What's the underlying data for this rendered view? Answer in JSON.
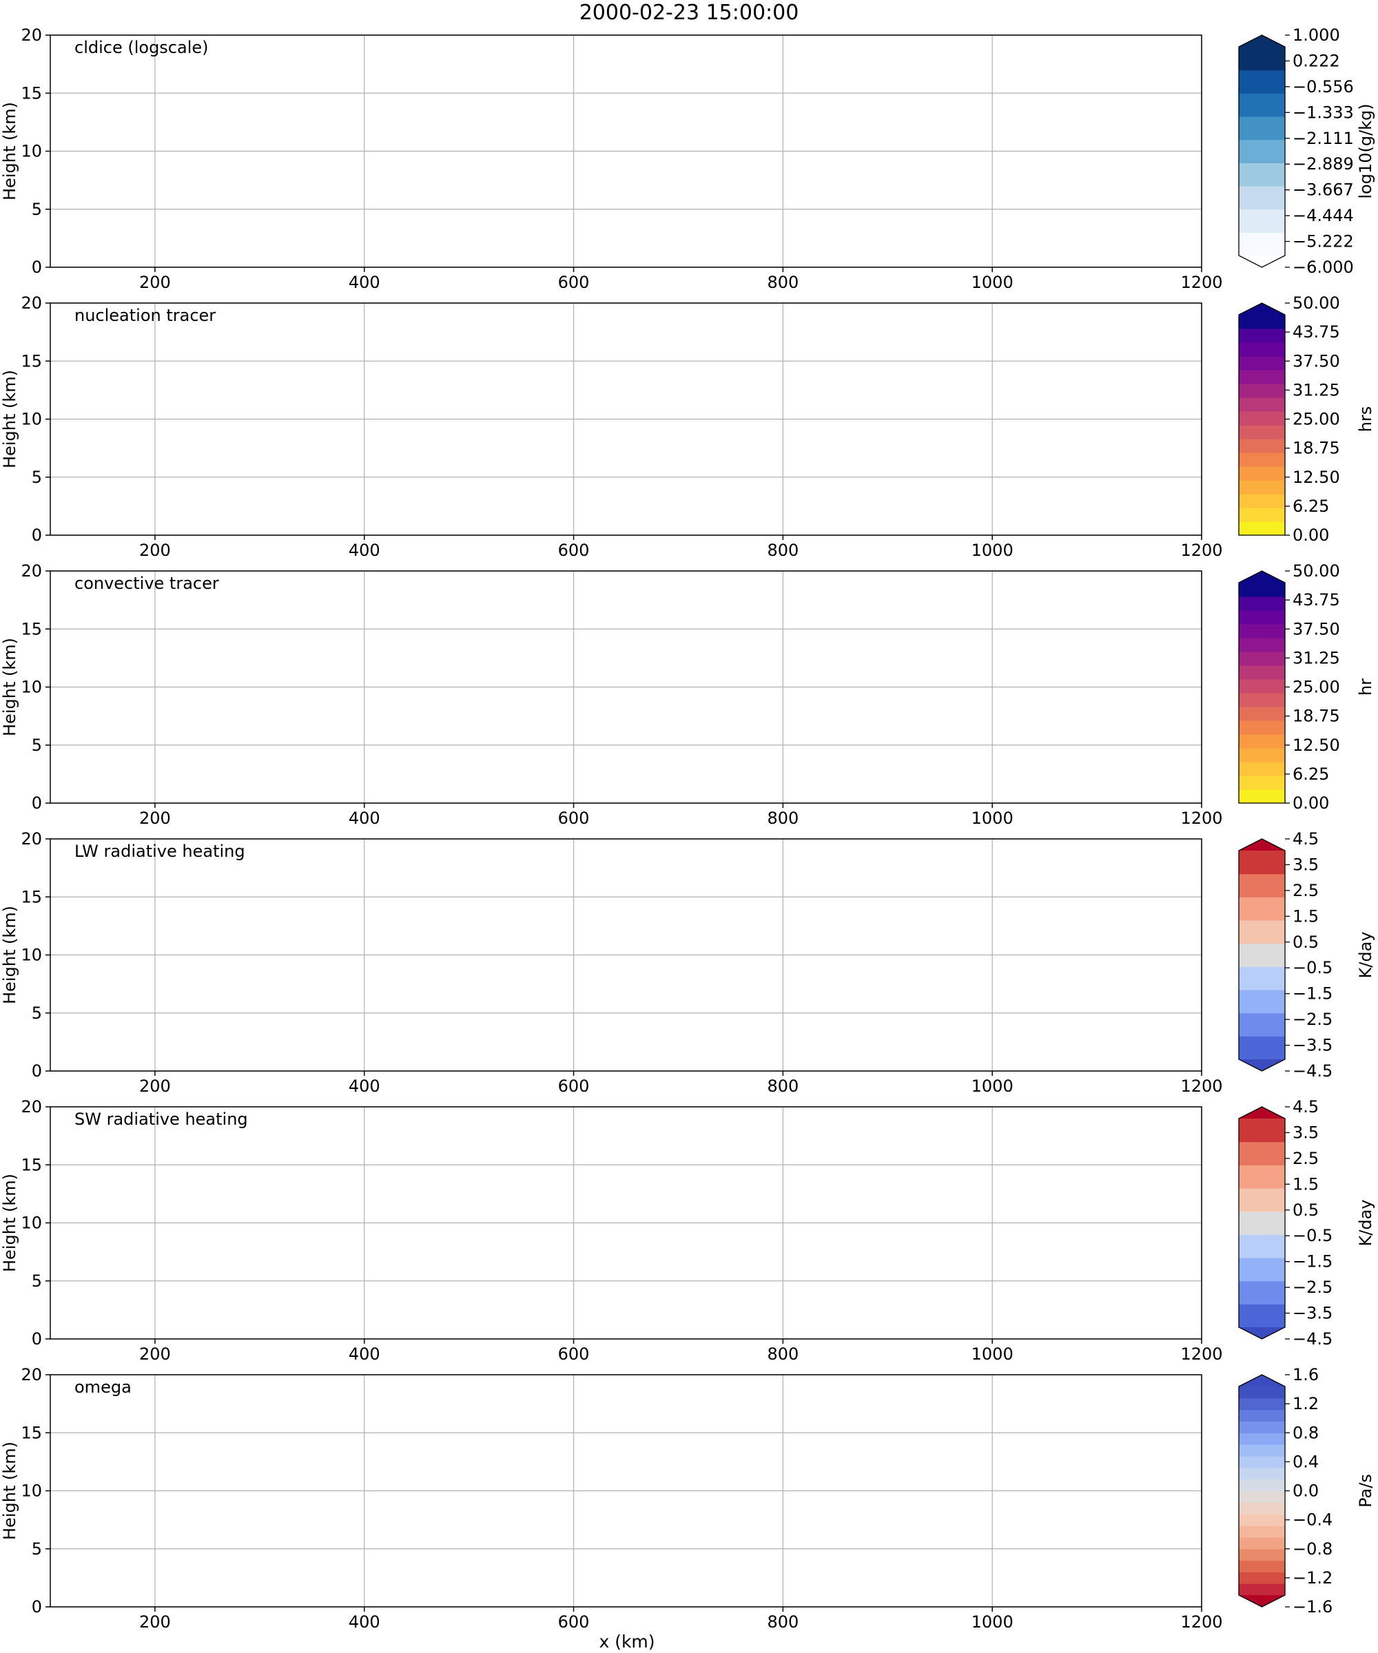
{
  "figure": {
    "title": "2000-02-23 15:00:00",
    "xlabel": "x (km)"
  },
  "chart_data": [
    {
      "type": "heatmap",
      "panel_label": "cldice (logscale)",
      "xlabel": "",
      "ylabel": "Height (km)",
      "xlim": [
        100,
        1200
      ],
      "ylim": [
        0,
        20
      ],
      "x_ticks": [
        200,
        400,
        600,
        800,
        1000,
        1200
      ],
      "y_ticks": [
        0,
        5,
        10,
        15,
        20
      ],
      "grid": true,
      "data": [],
      "colorbar": {
        "label": "log10(g/kg)",
        "levels": [
          -6.0,
          -5.222,
          -4.444,
          -3.667,
          -2.889,
          -2.111,
          -1.333,
          -0.556,
          0.222,
          1.0
        ],
        "tick_labels": [
          "1.000",
          "0.222",
          "−0.556",
          "−1.333",
          "−2.111",
          "−2.889",
          "−3.667",
          "−4.444",
          "−5.222",
          "−6.000"
        ],
        "colors": [
          "#f7fbff",
          "#dfebf7",
          "#c6dbef",
          "#9ecae1",
          "#6baed6",
          "#4292c6",
          "#2171b5",
          "#1055a0",
          "#08306b"
        ],
        "extend_low": true,
        "extend_high": true,
        "under_color": "#ffffff",
        "over_color": "#08306b"
      }
    },
    {
      "type": "heatmap",
      "panel_label": "nucleation tracer",
      "xlabel": "",
      "ylabel": "Height (km)",
      "xlim": [
        100,
        1200
      ],
      "ylim": [
        0,
        20
      ],
      "x_ticks": [
        200,
        400,
        600,
        800,
        1000,
        1200
      ],
      "y_ticks": [
        0,
        5,
        10,
        15,
        20
      ],
      "grid": true,
      "data": [],
      "colorbar": {
        "label": "hrs",
        "levels": [
          0.0,
          3.125,
          6.25,
          9.375,
          12.5,
          15.625,
          18.75,
          21.875,
          25.0,
          28.125,
          31.25,
          34.375,
          37.5,
          40.625,
          43.75,
          46.875,
          50.0
        ],
        "tick_labels": [
          "50.00",
          "43.75",
          "37.50",
          "31.25",
          "25.00",
          "18.75",
          "12.50",
          "6.25",
          "0.00"
        ],
        "colors": [
          "#f8f01e",
          "#fcd934",
          "#fec43c",
          "#fcae3e",
          "#f89b43",
          "#f1854b",
          "#e57058",
          "#d85c63",
          "#c94a6d",
          "#b93877",
          "#a52582",
          "#90168f",
          "#7b0b97",
          "#66039d",
          "#4f029b",
          "#0d0887"
        ],
        "extend_low": false,
        "extend_high": true,
        "over_color": "#0d0887"
      }
    },
    {
      "type": "heatmap",
      "panel_label": "convective tracer",
      "xlabel": "",
      "ylabel": "Height (km)",
      "xlim": [
        100,
        1200
      ],
      "ylim": [
        0,
        20
      ],
      "x_ticks": [
        200,
        400,
        600,
        800,
        1000,
        1200
      ],
      "y_ticks": [
        0,
        5,
        10,
        15,
        20
      ],
      "grid": true,
      "data": [],
      "colorbar": {
        "label": "hr",
        "levels": [
          0.0,
          3.125,
          6.25,
          9.375,
          12.5,
          15.625,
          18.75,
          21.875,
          25.0,
          28.125,
          31.25,
          34.375,
          37.5,
          40.625,
          43.75,
          46.875,
          50.0
        ],
        "tick_labels": [
          "50.00",
          "43.75",
          "37.50",
          "31.25",
          "25.00",
          "18.75",
          "12.50",
          "6.25",
          "0.00"
        ],
        "colors": [
          "#f8f01e",
          "#fcd934",
          "#fec43c",
          "#fcae3e",
          "#f89b43",
          "#f1854b",
          "#e57058",
          "#d85c63",
          "#c94a6d",
          "#b93877",
          "#a52582",
          "#90168f",
          "#7b0b97",
          "#66039d",
          "#4f029b",
          "#0d0887"
        ],
        "extend_low": false,
        "extend_high": true,
        "over_color": "#0d0887"
      }
    },
    {
      "type": "heatmap",
      "panel_label": "LW radiative heating",
      "xlabel": "",
      "ylabel": "Height (km)",
      "xlim": [
        100,
        1200
      ],
      "ylim": [
        0,
        20
      ],
      "x_ticks": [
        200,
        400,
        600,
        800,
        1000,
        1200
      ],
      "y_ticks": [
        0,
        5,
        10,
        15,
        20
      ],
      "grid": true,
      "data": [],
      "colorbar": {
        "label": "K/day",
        "levels": [
          -4.5,
          -3.5,
          -2.5,
          -1.5,
          -0.5,
          0.5,
          1.5,
          2.5,
          3.5,
          4.5
        ],
        "tick_labels": [
          "4.5",
          "3.5",
          "2.5",
          "1.5",
          "0.5",
          "−0.5",
          "−1.5",
          "−2.5",
          "−3.5",
          "−4.5"
        ],
        "colors": [
          "#4b66d6",
          "#6e8ceb",
          "#93b1f7",
          "#b7cef9",
          "#dcdcdc",
          "#f5c4ad",
          "#f5a286",
          "#e8765e",
          "#cc3838"
        ],
        "extend_low": true,
        "extend_high": true,
        "under_color": "#3b4cc0",
        "over_color": "#b40426"
      }
    },
    {
      "type": "heatmap",
      "panel_label": "SW radiative heating",
      "xlabel": "",
      "ylabel": "Height (km)",
      "xlim": [
        100,
        1200
      ],
      "ylim": [
        0,
        20
      ],
      "x_ticks": [
        200,
        400,
        600,
        800,
        1000,
        1200
      ],
      "y_ticks": [
        0,
        5,
        10,
        15,
        20
      ],
      "grid": true,
      "data": [],
      "colorbar": {
        "label": "K/day",
        "levels": [
          -4.5,
          -3.5,
          -2.5,
          -1.5,
          -0.5,
          0.5,
          1.5,
          2.5,
          3.5,
          4.5
        ],
        "tick_labels": [
          "4.5",
          "3.5",
          "2.5",
          "1.5",
          "0.5",
          "−0.5",
          "−1.5",
          "−2.5",
          "−3.5",
          "−4.5"
        ],
        "colors": [
          "#4b66d6",
          "#6e8ceb",
          "#93b1f7",
          "#b7cef9",
          "#dcdcdc",
          "#f5c4ad",
          "#f5a286",
          "#e8765e",
          "#cc3838"
        ],
        "extend_low": true,
        "extend_high": true,
        "under_color": "#3b4cc0",
        "over_color": "#b40426"
      }
    },
    {
      "type": "heatmap",
      "panel_label": "omega",
      "xlabel": "x (km)",
      "ylabel": "Height (km)",
      "xlim": [
        100,
        1200
      ],
      "ylim": [
        0,
        20
      ],
      "x_ticks": [
        200,
        400,
        600,
        800,
        1000,
        1200
      ],
      "y_ticks": [
        0,
        5,
        10,
        15,
        20
      ],
      "grid": true,
      "data": [],
      "colorbar": {
        "label": "Pa/s",
        "levels": [
          -1.8,
          -1.6,
          -1.4,
          -1.2,
          -1.0,
          -0.8,
          -0.6,
          -0.4,
          -0.2,
          0.0,
          0.2,
          0.4,
          0.6,
          0.8,
          1.0,
          1.2,
          1.4,
          1.6,
          1.8
        ],
        "tick_labels": [
          "1.6",
          "1.2",
          "0.8",
          "0.4",
          "0.0",
          "−0.4",
          "−0.8",
          "−1.2",
          "−1.6"
        ],
        "colors": [
          "#c5283d",
          "#d44e41",
          "#e06b50",
          "#e98a6a",
          "#f2a285",
          "#f4b79c",
          "#f4c8b3",
          "#ecd3c5",
          "#e2dad6",
          "#d5dbe5",
          "#c6d6f0",
          "#b4cbf5",
          "#a0bdf8",
          "#8ba8f4",
          "#7792ec",
          "#637ce0",
          "#5066d1",
          "#3f50c0"
        ],
        "extend_low": true,
        "extend_high": true,
        "under_color": "#b40426",
        "over_color": "#3b4cc0"
      }
    }
  ]
}
